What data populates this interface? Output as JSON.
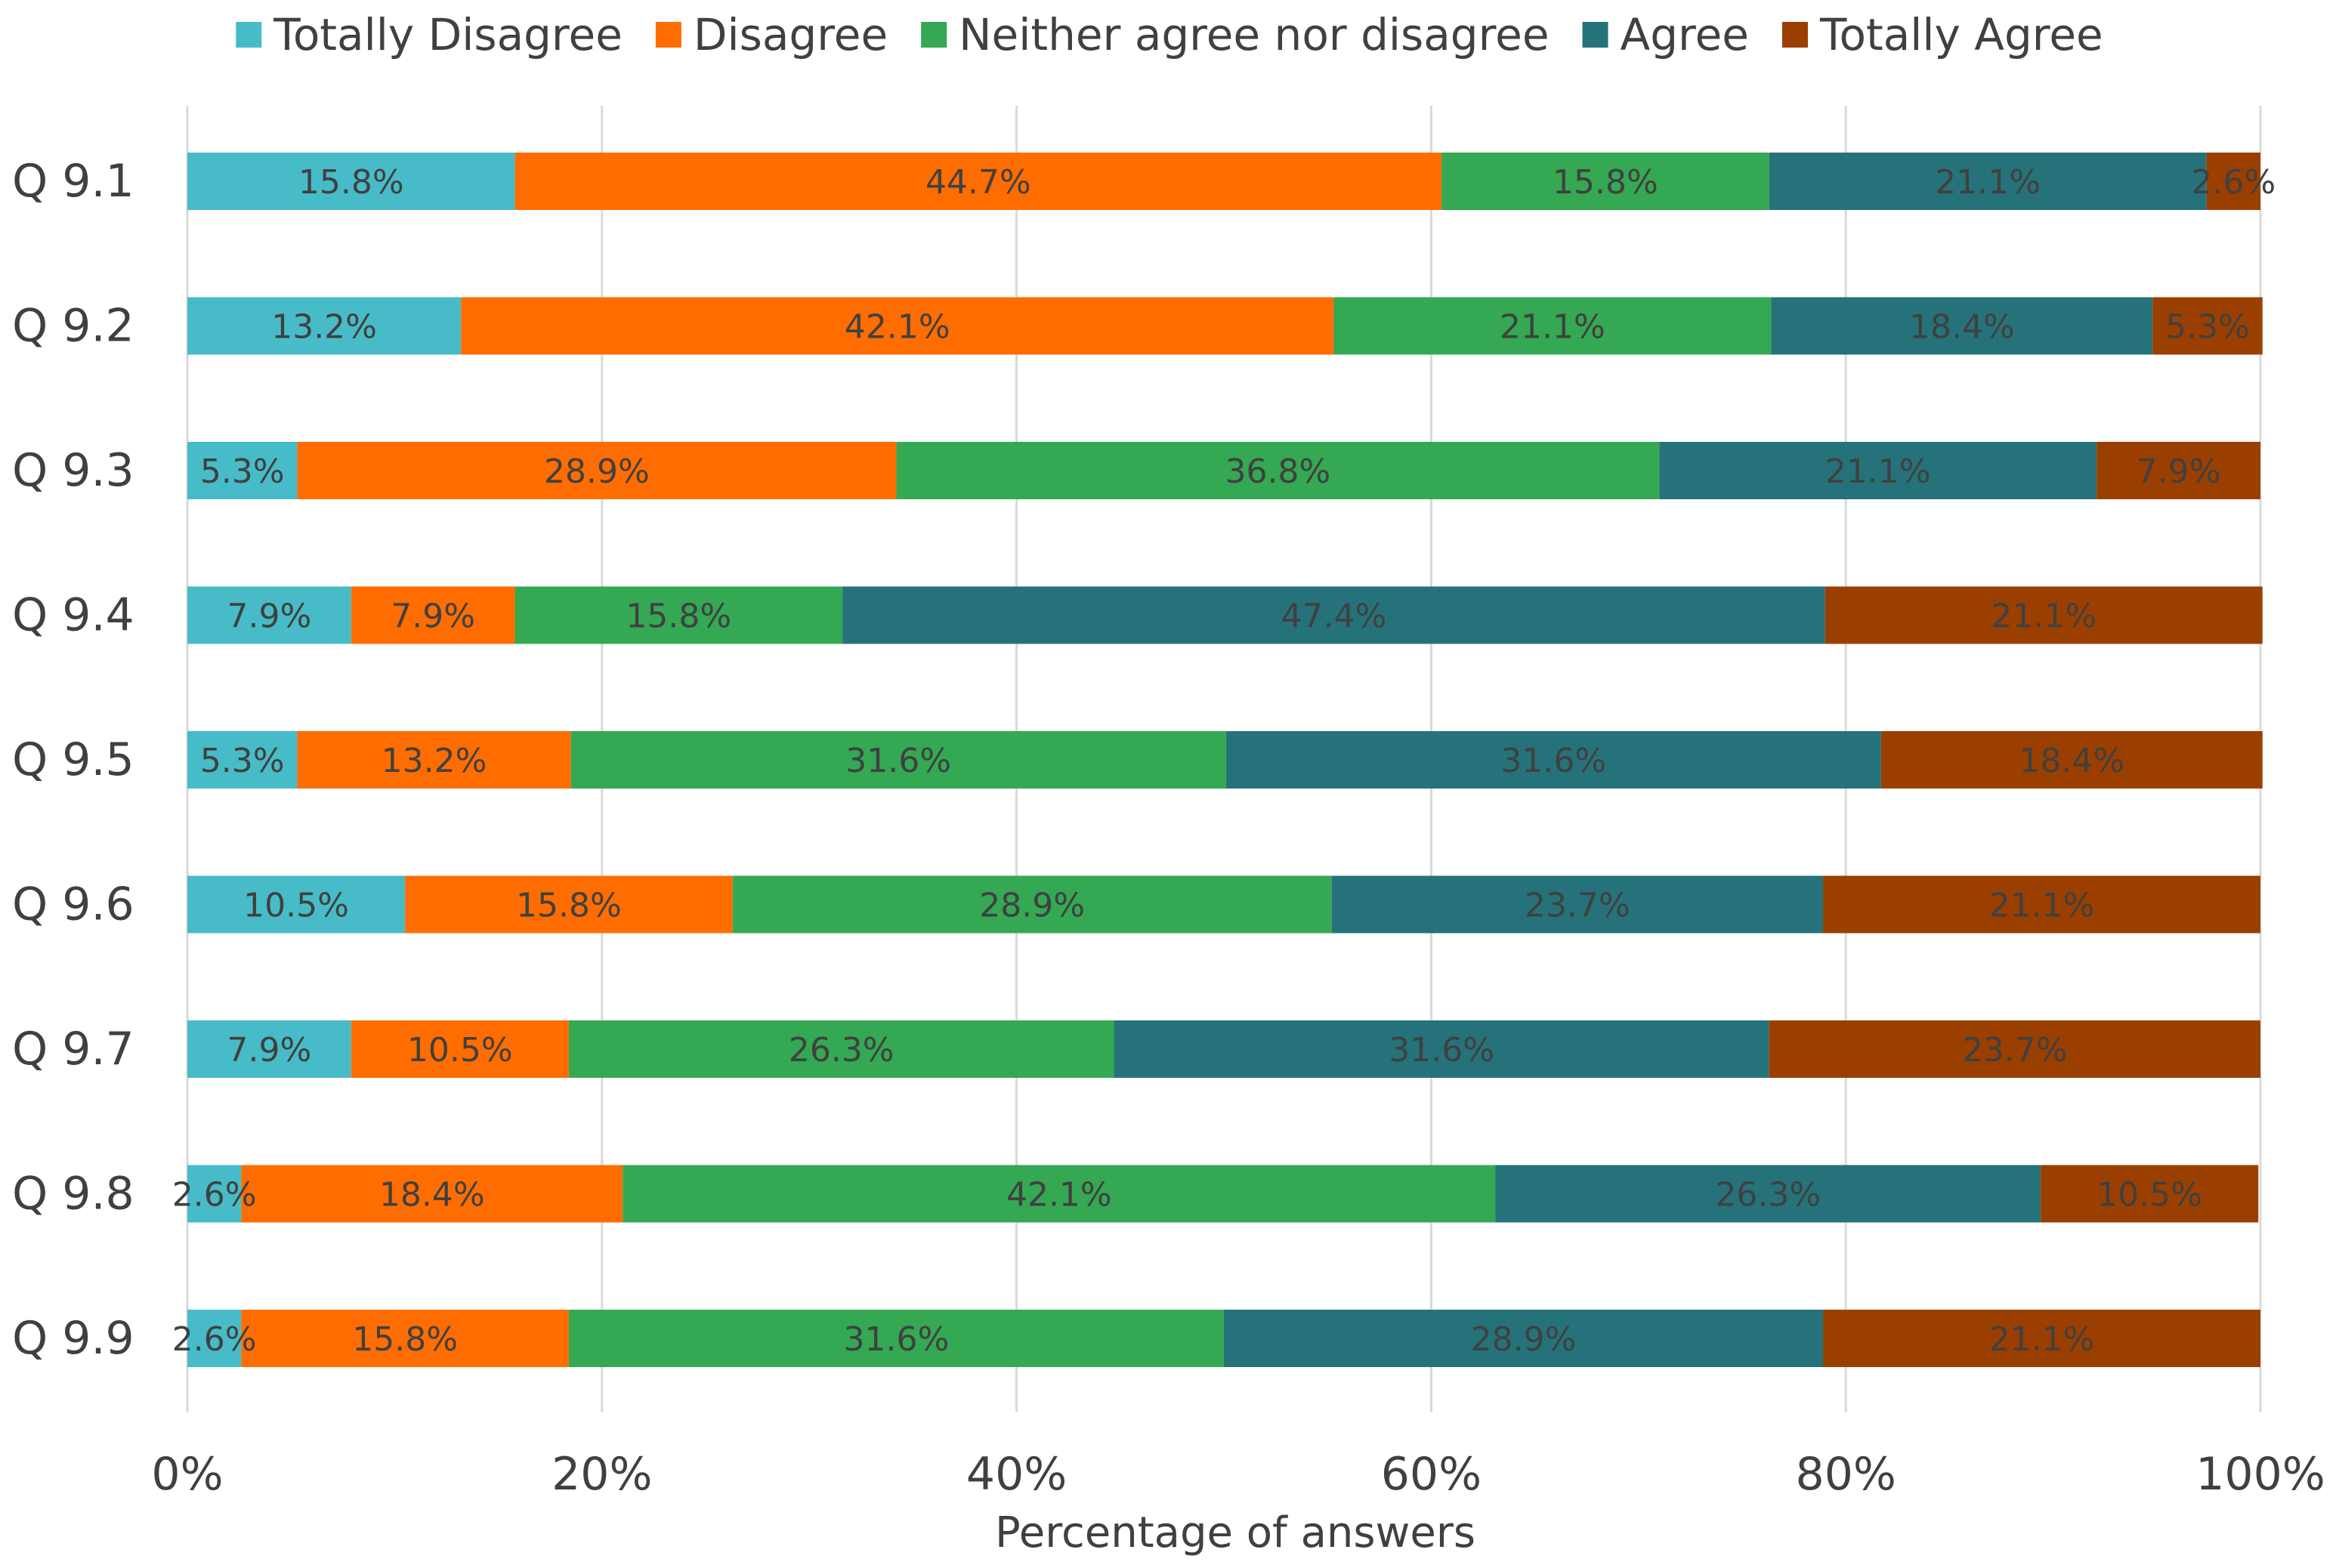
{
  "chart_data": {
    "type": "bar",
    "orientation": "horizontal",
    "stacked": "percent",
    "title": "",
    "xlabel": "Percentage  of answers",
    "ylabel": "",
    "xlim": [
      0,
      100
    ],
    "x_ticks": [
      "0%",
      "20%",
      "40%",
      "60%",
      "80%",
      "100%"
    ],
    "x_tick_values": [
      0,
      20,
      40,
      60,
      80,
      100
    ],
    "grid": true,
    "legend_position": "top",
    "categories": [
      "Q 9.1",
      "Q 9.2",
      "Q 9.3",
      "Q 9.4",
      "Q 9.5",
      "Q 9.6",
      "Q 9.7",
      "Q 9.8",
      "Q 9.9"
    ],
    "series": [
      {
        "name": "Totally Disagree",
        "color": "#47bcc8",
        "values": [
          15.8,
          13.2,
          5.3,
          7.9,
          5.3,
          10.5,
          7.9,
          2.6,
          2.6
        ]
      },
      {
        "name": "Disagree",
        "color": "#ff6d00",
        "values": [
          44.7,
          42.1,
          28.9,
          7.9,
          13.2,
          15.8,
          10.5,
          18.4,
          15.8
        ]
      },
      {
        "name": "Neither agree nor disagree",
        "color": "#34a853",
        "values": [
          15.8,
          21.1,
          36.8,
          15.8,
          31.6,
          28.9,
          26.3,
          42.1,
          31.6
        ]
      },
      {
        "name": "Agree",
        "color": "#26727a",
        "values": [
          21.1,
          18.4,
          21.1,
          47.4,
          31.6,
          23.7,
          31.6,
          26.3,
          28.9
        ]
      },
      {
        "name": "Totally Agree",
        "color": "#9b3f00",
        "values": [
          2.6,
          5.3,
          7.9,
          21.1,
          18.4,
          21.1,
          23.7,
          10.5,
          21.1
        ]
      }
    ]
  }
}
